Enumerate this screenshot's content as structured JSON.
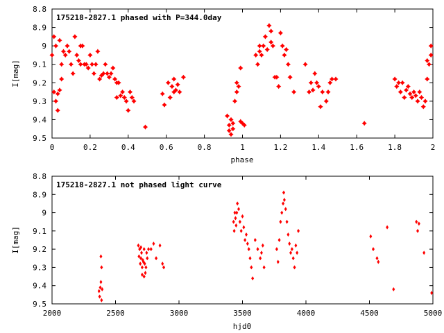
{
  "chart_data": [
    {
      "type": "scatter",
      "title": "175218-2827.1 phased with P=344.0day",
      "xlabel": "phase",
      "ylabel": "I[mag]",
      "xlim": [
        0,
        2
      ],
      "ylim": [
        8.8,
        9.5
      ],
      "y_inverted": true,
      "grid": false,
      "marker": "filled-star",
      "color": "#ff0000",
      "x_ticks": [
        0,
        0.2,
        0.4,
        0.6,
        0.8,
        1,
        1.2,
        1.4,
        1.6,
        1.8,
        2
      ],
      "x_tick_labels": [
        "0",
        "0.2",
        "0.4",
        "0.6",
        "0.8",
        "1",
        "1.2",
        "1.4",
        "1.6",
        "1.8",
        "2"
      ],
      "y_ticks": [
        8.8,
        8.9,
        9.0,
        9.1,
        9.2,
        9.3,
        9.4,
        9.5
      ],
      "y_tick_labels": [
        "8.8",
        "8.9",
        "9",
        "9.1",
        "9.2",
        "9.3",
        "9.4",
        "9.5"
      ],
      "points": [
        [
          0.0,
          9.05
        ],
        [
          0.01,
          8.95
        ],
        [
          0.01,
          9.25
        ],
        [
          0.02,
          9.3
        ],
        [
          0.02,
          9.0
        ],
        [
          0.03,
          9.26
        ],
        [
          0.03,
          9.35
        ],
        [
          0.04,
          8.97
        ],
        [
          0.04,
          9.24
        ],
        [
          0.05,
          9.1
        ],
        [
          0.05,
          9.18
        ],
        [
          0.06,
          9.03
        ],
        [
          0.07,
          9.05
        ],
        [
          0.08,
          9.0
        ],
        [
          0.09,
          9.03
        ],
        [
          0.1,
          9.1
        ],
        [
          0.11,
          9.15
        ],
        [
          0.12,
          8.95
        ],
        [
          0.13,
          9.05
        ],
        [
          0.14,
          9.08
        ],
        [
          0.15,
          9.1
        ],
        [
          0.15,
          9.0
        ],
        [
          0.16,
          9.0
        ],
        [
          0.17,
          9.1
        ],
        [
          0.18,
          9.1
        ],
        [
          0.19,
          9.12
        ],
        [
          0.2,
          9.05
        ],
        [
          0.21,
          9.1
        ],
        [
          0.22,
          9.15
        ],
        [
          0.23,
          9.1
        ],
        [
          0.24,
          9.03
        ],
        [
          0.25,
          9.18
        ],
        [
          0.26,
          9.16
        ],
        [
          0.27,
          9.15
        ],
        [
          0.28,
          9.1
        ],
        [
          0.29,
          9.15
        ],
        [
          0.3,
          9.17
        ],
        [
          0.31,
          9.15
        ],
        [
          0.32,
          9.12
        ],
        [
          0.33,
          9.18
        ],
        [
          0.34,
          9.2
        ],
        [
          0.34,
          9.28
        ],
        [
          0.35,
          9.2
        ],
        [
          0.36,
          9.27
        ],
        [
          0.37,
          9.25
        ],
        [
          0.38,
          9.28
        ],
        [
          0.39,
          9.3
        ],
        [
          0.4,
          9.35
        ],
        [
          0.41,
          9.25
        ],
        [
          0.42,
          9.28
        ],
        [
          0.43,
          9.3
        ],
        [
          0.49,
          9.44
        ],
        [
          0.58,
          9.26
        ],
        [
          0.59,
          9.32
        ],
        [
          0.61,
          9.2
        ],
        [
          0.62,
          9.28
        ],
        [
          0.63,
          9.22
        ],
        [
          0.64,
          9.25
        ],
        [
          0.64,
          9.18
        ],
        [
          0.65,
          9.24
        ],
        [
          0.66,
          9.21
        ],
        [
          0.67,
          9.25
        ],
        [
          0.69,
          9.17
        ],
        [
          0.92,
          9.38
        ],
        [
          0.93,
          9.43
        ],
        [
          0.93,
          9.46
        ],
        [
          0.94,
          9.4
        ],
        [
          0.94,
          9.48
        ],
        [
          0.95,
          9.45
        ],
        [
          0.95,
          9.42
        ],
        [
          0.96,
          9.3
        ],
        [
          0.97,
          9.25
        ],
        [
          0.97,
          9.2
        ],
        [
          0.98,
          9.22
        ],
        [
          0.99,
          9.41
        ],
        [
          0.99,
          9.12
        ],
        [
          1.0,
          9.42
        ],
        [
          1.01,
          9.43
        ],
        [
          1.07,
          9.05
        ],
        [
          1.08,
          9.1
        ],
        [
          1.09,
          9.0
        ],
        [
          1.09,
          9.03
        ],
        [
          1.1,
          9.05
        ],
        [
          1.11,
          9.0
        ],
        [
          1.12,
          8.95
        ],
        [
          1.13,
          9.02
        ],
        [
          1.14,
          8.89
        ],
        [
          1.15,
          8.92
        ],
        [
          1.15,
          8.98
        ],
        [
          1.16,
          9.0
        ],
        [
          1.17,
          9.17
        ],
        [
          1.18,
          9.17
        ],
        [
          1.19,
          9.22
        ],
        [
          1.2,
          8.93
        ],
        [
          1.21,
          9.0
        ],
        [
          1.22,
          9.05
        ],
        [
          1.23,
          9.02
        ],
        [
          1.24,
          9.1
        ],
        [
          1.25,
          9.17
        ],
        [
          1.27,
          9.25
        ],
        [
          1.33,
          9.1
        ],
        [
          1.35,
          9.25
        ],
        [
          1.36,
          9.2
        ],
        [
          1.37,
          9.24
        ],
        [
          1.38,
          9.15
        ],
        [
          1.39,
          9.2
        ],
        [
          1.4,
          9.22
        ],
        [
          1.41,
          9.33
        ],
        [
          1.42,
          9.25
        ],
        [
          1.44,
          9.3
        ],
        [
          1.45,
          9.25
        ],
        [
          1.46,
          9.2
        ],
        [
          1.47,
          9.18
        ],
        [
          1.49,
          9.18
        ],
        [
          1.64,
          9.42
        ],
        [
          1.8,
          9.18
        ],
        [
          1.81,
          9.22
        ],
        [
          1.82,
          9.2
        ],
        [
          1.83,
          9.25
        ],
        [
          1.84,
          9.2
        ],
        [
          1.85,
          9.28
        ],
        [
          1.86,
          9.24
        ],
        [
          1.87,
          9.22
        ],
        [
          1.88,
          9.26
        ],
        [
          1.89,
          9.28
        ],
        [
          1.9,
          9.25
        ],
        [
          1.91,
          9.27
        ],
        [
          1.92,
          9.3
        ],
        [
          1.93,
          9.25
        ],
        [
          1.94,
          9.28
        ],
        [
          1.95,
          9.33
        ],
        [
          1.96,
          9.3
        ],
        [
          1.97,
          9.18
        ],
        [
          1.97,
          9.08
        ],
        [
          1.98,
          9.1
        ],
        [
          1.99,
          9.0
        ],
        [
          1.99,
          9.05
        ]
      ]
    },
    {
      "type": "scatter",
      "title": "175218-2827.1 not phased light curve",
      "xlabel": "hjd0",
      "ylabel": "I[mag]",
      "xlim": [
        2000,
        5000
      ],
      "ylim": [
        8.8,
        9.5
      ],
      "y_inverted": true,
      "grid": false,
      "marker": "filled-diamond",
      "color": "#ff0000",
      "x_ticks": [
        2000,
        2500,
        3000,
        3500,
        4000,
        4500,
        5000
      ],
      "x_tick_labels": [
        "2000",
        "2500",
        "3000",
        "3500",
        "4000",
        "4500",
        "5000"
      ],
      "y_ticks": [
        8.8,
        8.9,
        9.0,
        9.1,
        9.2,
        9.3,
        9.4,
        9.5
      ],
      "y_tick_labels": [
        "8.8",
        "8.9",
        "9",
        "9.1",
        "9.2",
        "9.3",
        "9.4",
        "9.5"
      ],
      "points": [
        [
          2370,
          9.43
        ],
        [
          2375,
          9.46
        ],
        [
          2380,
          9.41
        ],
        [
          2385,
          9.24
        ],
        [
          2390,
          9.3
        ],
        [
          2395,
          9.42
        ],
        [
          2385,
          9.38
        ],
        [
          2390,
          9.48
        ],
        [
          2680,
          9.18
        ],
        [
          2685,
          9.24
        ],
        [
          2690,
          9.2
        ],
        [
          2695,
          9.28
        ],
        [
          2700,
          9.25
        ],
        [
          2705,
          9.22
        ],
        [
          2710,
          9.3
        ],
        [
          2715,
          9.26
        ],
        [
          2720,
          9.27
        ],
        [
          2725,
          9.2
        ],
        [
          2730,
          9.28
        ],
        [
          2735,
          9.33
        ],
        [
          2740,
          9.3
        ],
        [
          2745,
          9.22
        ],
        [
          2750,
          9.25
        ],
        [
          2700,
          9.19
        ],
        [
          2710,
          9.34
        ],
        [
          2725,
          9.35
        ],
        [
          2760,
          9.2
        ],
        [
          2780,
          9.2
        ],
        [
          2800,
          9.17
        ],
        [
          2820,
          9.25
        ],
        [
          2850,
          9.18
        ],
        [
          2870,
          9.28
        ],
        [
          2880,
          9.3
        ],
        [
          3430,
          9.05
        ],
        [
          3435,
          9.1
        ],
        [
          3440,
          9.0
        ],
        [
          3445,
          9.03
        ],
        [
          3450,
          9.07
        ],
        [
          3455,
          9.0
        ],
        [
          3460,
          8.95
        ],
        [
          3470,
          8.98
        ],
        [
          3480,
          9.05
        ],
        [
          3490,
          9.1
        ],
        [
          3500,
          9.02
        ],
        [
          3510,
          9.08
        ],
        [
          3520,
          9.15
        ],
        [
          3530,
          9.12
        ],
        [
          3540,
          9.17
        ],
        [
          3550,
          9.2
        ],
        [
          3560,
          9.25
        ],
        [
          3570,
          9.3
        ],
        [
          3580,
          9.36
        ],
        [
          3600,
          9.15
        ],
        [
          3620,
          9.2
        ],
        [
          3640,
          9.25
        ],
        [
          3650,
          9.22
        ],
        [
          3660,
          9.18
        ],
        [
          3670,
          9.3
        ],
        [
          3770,
          9.2
        ],
        [
          3780,
          9.27
        ],
        [
          3790,
          9.15
        ],
        [
          3800,
          9.05
        ],
        [
          3810,
          9.0
        ],
        [
          3820,
          8.95
        ],
        [
          3825,
          8.89
        ],
        [
          3830,
          8.93
        ],
        [
          3840,
          8.98
        ],
        [
          3850,
          9.05
        ],
        [
          3860,
          9.12
        ],
        [
          3870,
          9.17
        ],
        [
          3880,
          9.22
        ],
        [
          3890,
          9.2
        ],
        [
          3900,
          9.25
        ],
        [
          3910,
          9.3
        ],
        [
          3920,
          9.18
        ],
        [
          3930,
          9.22
        ],
        [
          3940,
          9.1
        ],
        [
          4510,
          9.13
        ],
        [
          4530,
          9.2
        ],
        [
          4560,
          9.25
        ],
        [
          4570,
          9.27
        ],
        [
          4640,
          9.08
        ],
        [
          4690,
          9.42
        ],
        [
          4870,
          9.05
        ],
        [
          4880,
          9.1
        ],
        [
          4890,
          9.06
        ],
        [
          4930,
          9.22
        ],
        [
          4990,
          9.44
        ]
      ]
    }
  ]
}
